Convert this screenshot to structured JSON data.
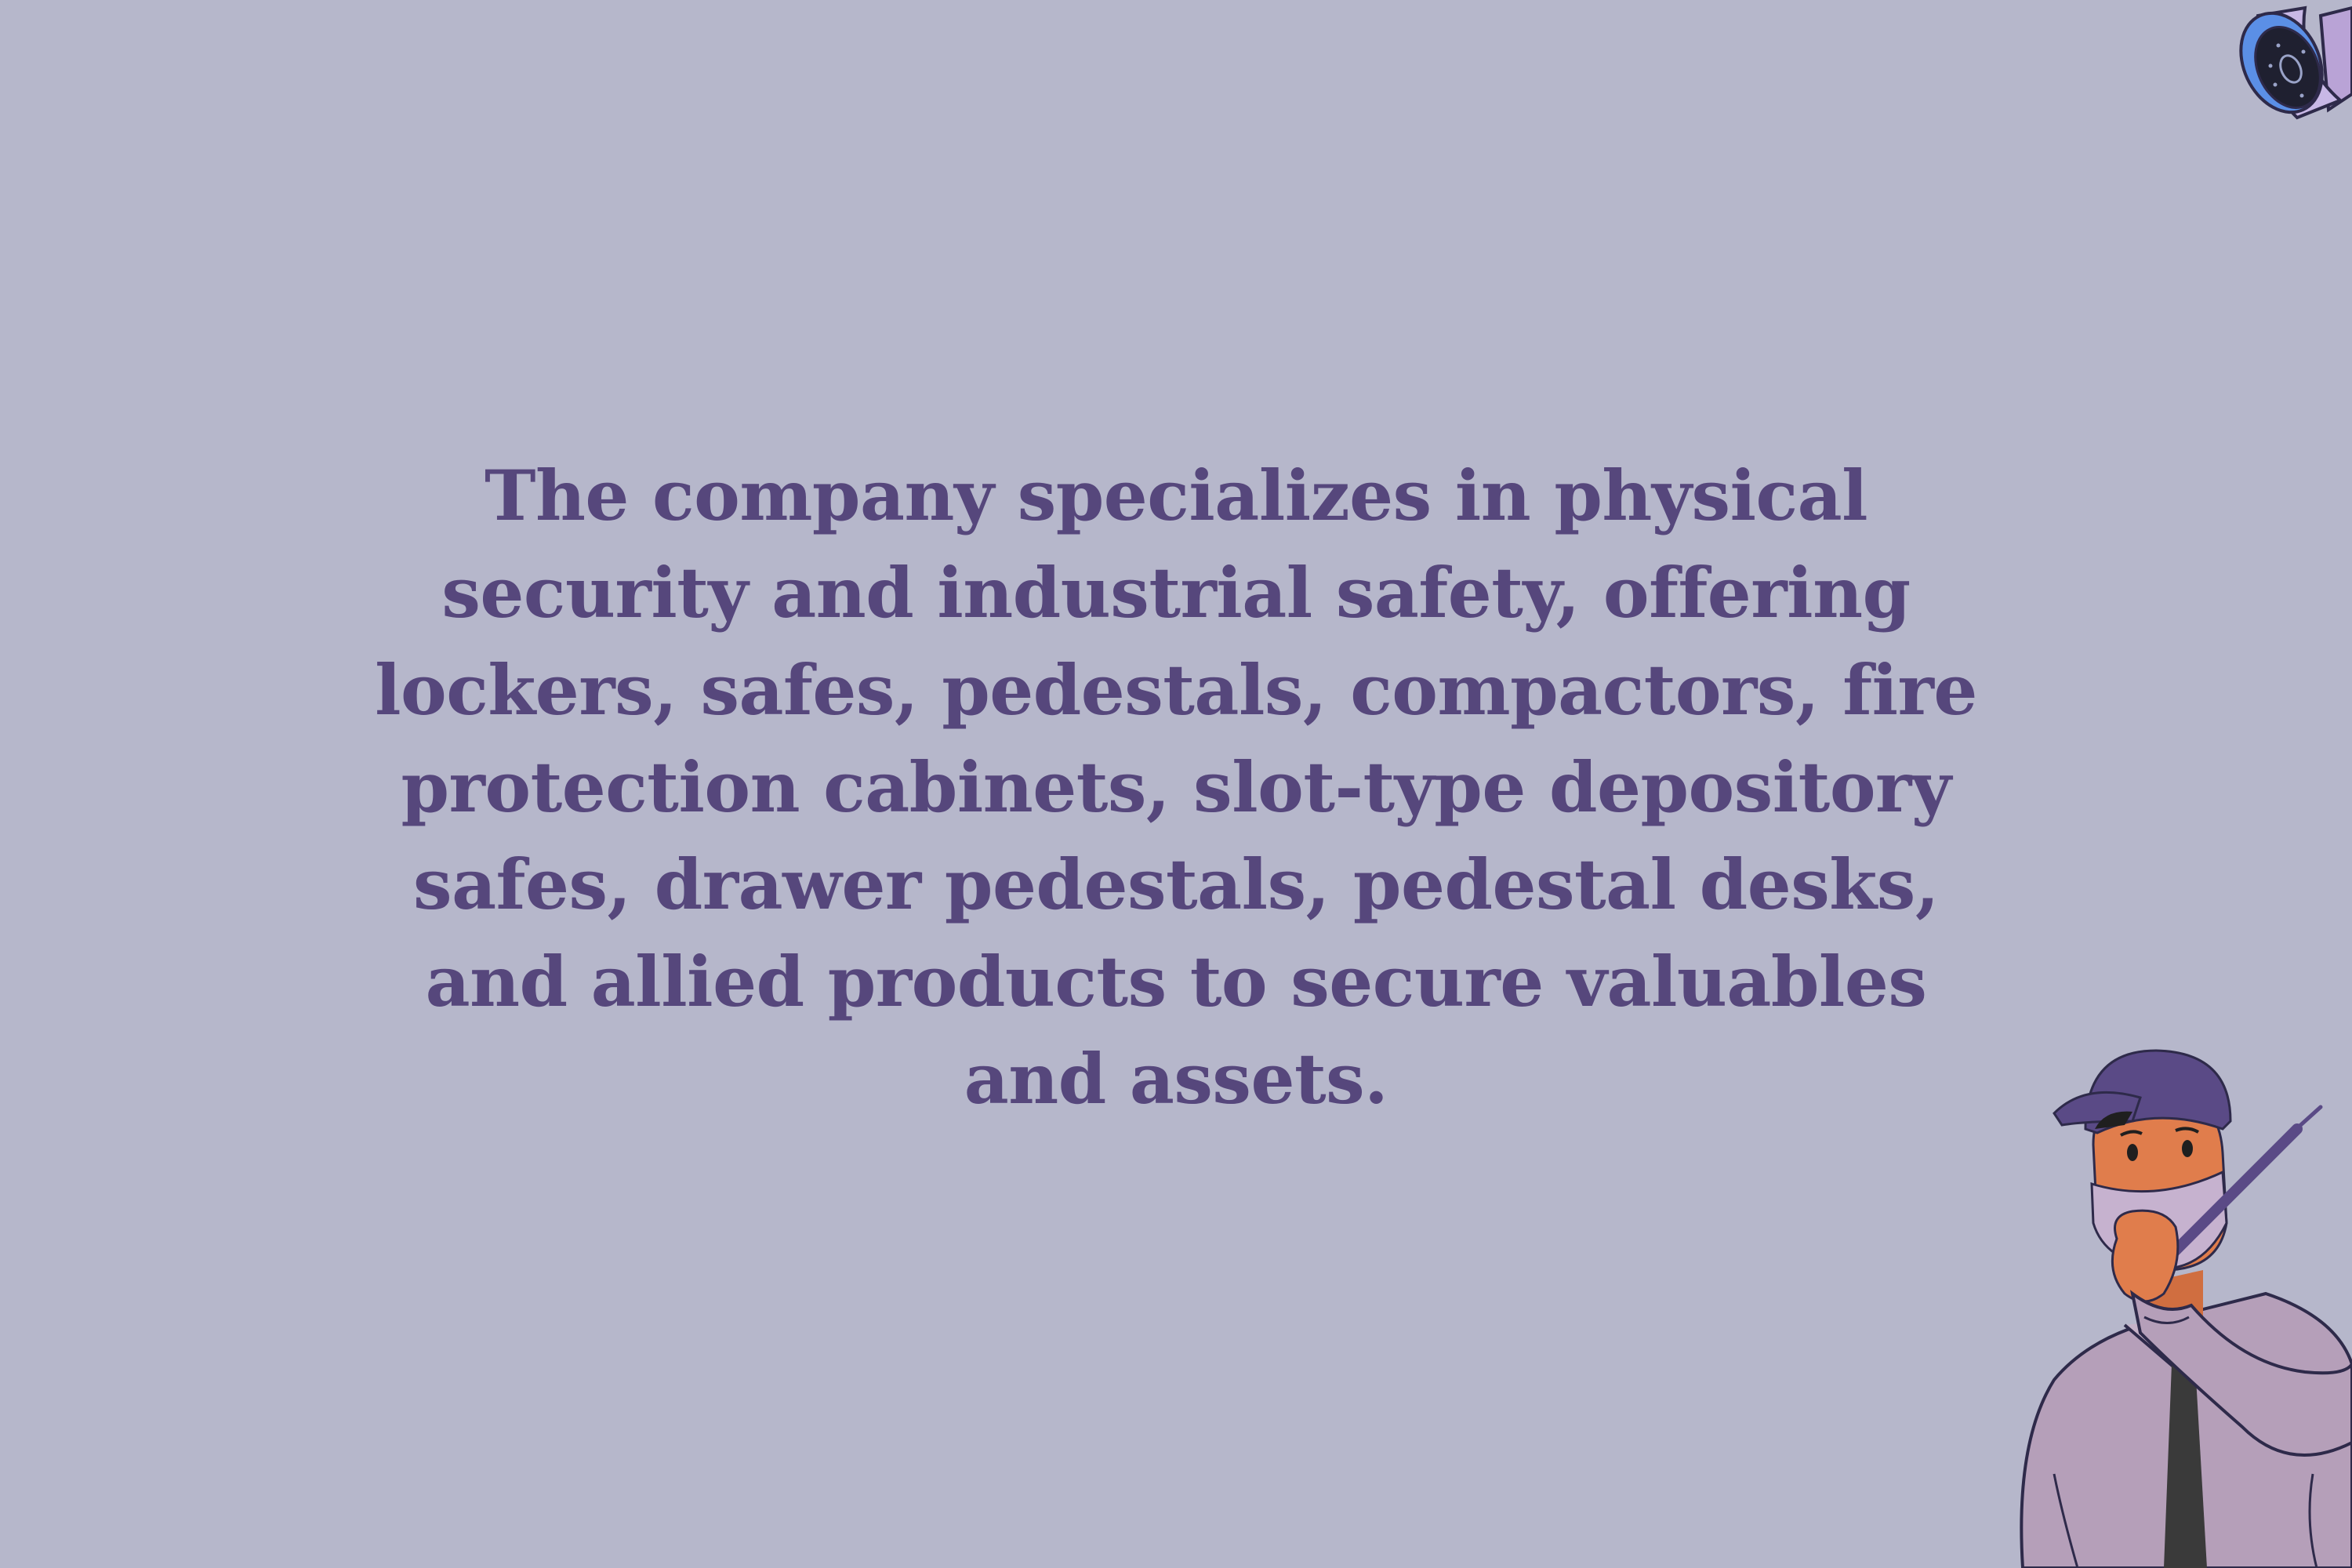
{
  "slide": {
    "paragraph": "The company specializes in physical security and industrial safety, offering lockers, safes, pedestals, compactors, fire protection cabinets, slot-type depository safes, drawer pedestals, pedestal desks, and allied products to secure valuables and assets.",
    "icons": [
      "security-camera-icon",
      "security-guard-illustration"
    ]
  },
  "colors": {
    "background": "#b6b7cb",
    "text": "#56477c",
    "cap": "#5a4a86",
    "skin": "#e07d4c",
    "shirt": "#b59fb9",
    "tie": "#3a3a3a",
    "camera_blue": "#5b8fe6"
  }
}
